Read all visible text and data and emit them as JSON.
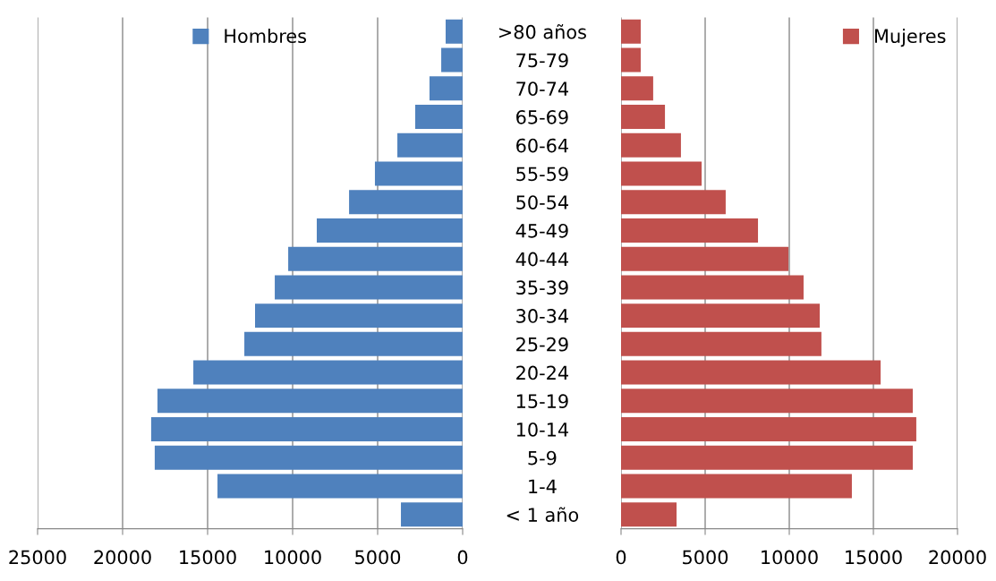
{
  "chart_data": [
    {
      "type": "bar",
      "orientation": "horizontal",
      "categories": [
        ">80 años",
        "75-79",
        "70-74",
        "65-69",
        "60-64",
        "55-59",
        "50-54",
        "45-49",
        "40-44",
        "35-39",
        "30-34",
        "25-29",
        "20-24",
        "15-19",
        "10-14",
        "5-9",
        "1-4",
        "< 1 año"
      ],
      "series": [
        {
          "name": "Hombres",
          "color": "#4f81bd",
          "values": [
            1000,
            1260,
            1950,
            2790,
            3840,
            5160,
            6680,
            8580,
            10260,
            11050,
            12210,
            12840,
            15840,
            17950,
            18320,
            18110,
            14420,
            3630
          ]
        }
      ],
      "xlim": [
        25000,
        0
      ],
      "xticks": [
        25000,
        20000,
        15000,
        10000,
        5000,
        0
      ],
      "grid": "x",
      "legend": "top"
    },
    {
      "type": "bar",
      "orientation": "horizontal",
      "categories": [
        null,
        null,
        null,
        null,
        null,
        null,
        null,
        null,
        null,
        null,
        null,
        null,
        null,
        null,
        null,
        null,
        null,
        null
      ],
      "series": [
        {
          "name": "Mujeres",
          "color": "#c0504d",
          "values": [
            1170,
            1170,
            1910,
            2610,
            3560,
            4790,
            6220,
            8140,
            9950,
            10850,
            11810,
            11910,
            15430,
            17340,
            17550,
            17340,
            13720,
            3300
          ]
        }
      ],
      "xlim": [
        0,
        20000
      ],
      "xticks": [
        0,
        5000,
        10000,
        15000,
        20000
      ],
      "grid": "x",
      "legend": "top right"
    }
  ]
}
